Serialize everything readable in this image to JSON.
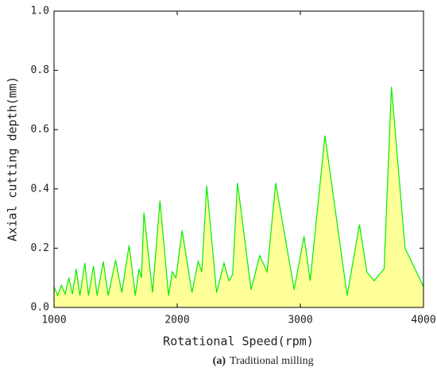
{
  "chart_data": {
    "type": "area",
    "xlabel": "Rotational Speed(rpm)",
    "ylabel": "Axial cutting depth(mm)",
    "caption_label": "(a)",
    "caption": "Traditional milling",
    "color": "#00ee00",
    "fill": "#ffff99",
    "x": [
      1000,
      1030,
      1060,
      1090,
      1120,
      1150,
      1180,
      1210,
      1250,
      1280,
      1320,
      1350,
      1400,
      1440,
      1500,
      1550,
      1610,
      1660,
      1690,
      1710,
      1730,
      1800,
      1860,
      1930,
      1960,
      1990,
      2040,
      2120,
      2170,
      2200,
      2240,
      2320,
      2380,
      2420,
      2450,
      2490,
      2600,
      2670,
      2730,
      2800,
      2950,
      3030,
      3080,
      3200,
      3380,
      3480,
      3540,
      3600,
      3680,
      3740,
      3850,
      4000
    ],
    "values": [
      0.07,
      0.04,
      0.075,
      0.045,
      0.1,
      0.045,
      0.13,
      0.04,
      0.15,
      0.04,
      0.14,
      0.04,
      0.155,
      0.04,
      0.16,
      0.05,
      0.21,
      0.04,
      0.13,
      0.1,
      0.32,
      0.05,
      0.36,
      0.04,
      0.12,
      0.1,
      0.26,
      0.05,
      0.155,
      0.12,
      0.41,
      0.05,
      0.15,
      0.09,
      0.11,
      0.42,
      0.06,
      0.175,
      0.12,
      0.42,
      0.06,
      0.24,
      0.09,
      0.58,
      0.04,
      0.28,
      0.12,
      0.09,
      0.13,
      0.745,
      0.2,
      0.07
    ],
    "xlim": [
      1000,
      4000
    ],
    "xticks": [
      1000,
      2000,
      3000,
      4000
    ],
    "ylim": [
      0,
      1
    ],
    "yticks": [
      {
        "value": 0,
        "label": "0.0"
      },
      0.2,
      0.4,
      0.6,
      0.8,
      {
        "value": 1,
        "label": "1.0"
      }
    ]
  }
}
